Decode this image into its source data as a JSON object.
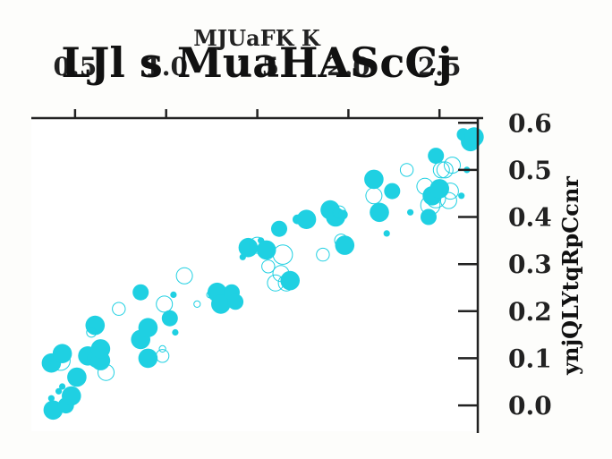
{
  "chart_data": {
    "type": "scatter",
    "subtitle": "MJUaFK K",
    "title": "LJl s MuaHAScCj",
    "ylabel": "ynjQLYtqRpCcnr",
    "xlabel": "",
    "x_axis_position": "top",
    "y_axis_position": "right",
    "xlim": [
      0.26,
      2.71
    ],
    "ylim": [
      -0.055,
      0.61
    ],
    "xticks": [
      0.5,
      1.0,
      1.5,
      2.0,
      2.5
    ],
    "xtick_labels": [
      "0.5",
      "1.0",
      "1.5",
      "2.0",
      "2.5"
    ],
    "yticks": [
      0.0,
      0.1,
      0.2,
      0.3,
      0.4,
      0.5,
      0.6
    ],
    "ytick_labels": [
      "0.0",
      "0.1",
      "0.2",
      "0.3",
      "0.4",
      "0.5",
      "0.6"
    ],
    "grid": false,
    "marker_color": "#1fd0e2",
    "points": [
      {
        "x": 0.38,
        "y": -0.01,
        "size": 3,
        "filled": true
      },
      {
        "x": 0.45,
        "y": 0.0,
        "size": 2.5,
        "filled": true
      },
      {
        "x": 0.48,
        "y": 0.02,
        "size": 3,
        "filled": true
      },
      {
        "x": 0.37,
        "y": 0.015,
        "size": 1,
        "filled": true
      },
      {
        "x": 0.41,
        "y": 0.03,
        "size": 1,
        "filled": true
      },
      {
        "x": 0.43,
        "y": 0.04,
        "size": 1,
        "filled": true
      },
      {
        "x": 0.37,
        "y": 0.09,
        "size": 3,
        "filled": true
      },
      {
        "x": 0.42,
        "y": 0.095,
        "size": 3,
        "filled": false
      },
      {
        "x": 0.43,
        "y": 0.11,
        "size": 3,
        "filled": true
      },
      {
        "x": 0.51,
        "y": 0.06,
        "size": 3,
        "filled": true
      },
      {
        "x": 0.57,
        "y": 0.105,
        "size": 3,
        "filled": true
      },
      {
        "x": 0.62,
        "y": 0.1,
        "size": 3,
        "filled": true
      },
      {
        "x": 0.64,
        "y": 0.095,
        "size": 3,
        "filled": true
      },
      {
        "x": 0.64,
        "y": 0.12,
        "size": 3,
        "filled": true
      },
      {
        "x": 0.67,
        "y": 0.07,
        "size": 2.5,
        "filled": false
      },
      {
        "x": 0.61,
        "y": 0.17,
        "size": 3,
        "filled": true
      },
      {
        "x": 0.59,
        "y": 0.155,
        "size": 1.5,
        "filled": false
      },
      {
        "x": 0.74,
        "y": 0.205,
        "size": 2,
        "filled": false
      },
      {
        "x": 0.86,
        "y": 0.24,
        "size": 2.5,
        "filled": true
      },
      {
        "x": 0.86,
        "y": 0.14,
        "size": 3,
        "filled": true
      },
      {
        "x": 0.9,
        "y": 0.165,
        "size": 3,
        "filled": true
      },
      {
        "x": 0.9,
        "y": 0.1,
        "size": 3,
        "filled": true
      },
      {
        "x": 0.88,
        "y": 0.09,
        "size": 1,
        "filled": true
      },
      {
        "x": 0.98,
        "y": 0.105,
        "size": 2,
        "filled": false
      },
      {
        "x": 0.98,
        "y": 0.12,
        "size": 1,
        "filled": false
      },
      {
        "x": 0.99,
        "y": 0.215,
        "size": 2.5,
        "filled": false
      },
      {
        "x": 1.02,
        "y": 0.185,
        "size": 2.5,
        "filled": true
      },
      {
        "x": 1.04,
        "y": 0.235,
        "size": 1,
        "filled": true
      },
      {
        "x": 1.05,
        "y": 0.155,
        "size": 1,
        "filled": true
      },
      {
        "x": 1.1,
        "y": 0.275,
        "size": 2.5,
        "filled": false
      },
      {
        "x": 1.17,
        "y": 0.215,
        "size": 1,
        "filled": false
      },
      {
        "x": 1.24,
        "y": 0.235,
        "size": 1,
        "filled": false
      },
      {
        "x": 1.28,
        "y": 0.24,
        "size": 3,
        "filled": true
      },
      {
        "x": 1.3,
        "y": 0.215,
        "size": 3,
        "filled": true
      },
      {
        "x": 1.36,
        "y": 0.24,
        "size": 2.5,
        "filled": true
      },
      {
        "x": 1.38,
        "y": 0.22,
        "size": 2.5,
        "filled": true
      },
      {
        "x": 1.42,
        "y": 0.315,
        "size": 1,
        "filled": true
      },
      {
        "x": 1.45,
        "y": 0.335,
        "size": 3,
        "filled": true
      },
      {
        "x": 1.5,
        "y": 0.34,
        "size": 2.5,
        "filled": false
      },
      {
        "x": 1.52,
        "y": 0.35,
        "size": 1,
        "filled": true
      },
      {
        "x": 1.55,
        "y": 0.33,
        "size": 3,
        "filled": true
      },
      {
        "x": 1.56,
        "y": 0.295,
        "size": 2,
        "filled": false
      },
      {
        "x": 1.6,
        "y": 0.26,
        "size": 2.5,
        "filled": false
      },
      {
        "x": 1.62,
        "y": 0.375,
        "size": 2.5,
        "filled": true
      },
      {
        "x": 1.63,
        "y": 0.28,
        "size": 2.5,
        "filled": false
      },
      {
        "x": 1.64,
        "y": 0.32,
        "size": 3,
        "filled": false
      },
      {
        "x": 1.66,
        "y": 0.26,
        "size": 2.5,
        "filled": false
      },
      {
        "x": 1.68,
        "y": 0.265,
        "size": 3,
        "filled": true
      },
      {
        "x": 1.72,
        "y": 0.395,
        "size": 1.5,
        "filled": true
      },
      {
        "x": 1.77,
        "y": 0.395,
        "size": 3,
        "filled": true
      },
      {
        "x": 1.86,
        "y": 0.32,
        "size": 2,
        "filled": false
      },
      {
        "x": 1.9,
        "y": 0.415,
        "size": 3,
        "filled": true
      },
      {
        "x": 1.93,
        "y": 0.4,
        "size": 3,
        "filled": true
      },
      {
        "x": 1.95,
        "y": 0.41,
        "size": 2,
        "filled": false
      },
      {
        "x": 1.97,
        "y": 0.405,
        "size": 1.5,
        "filled": true
      },
      {
        "x": 1.96,
        "y": 0.35,
        "size": 2,
        "filled": false
      },
      {
        "x": 1.98,
        "y": 0.34,
        "size": 3,
        "filled": true
      },
      {
        "x": 2.14,
        "y": 0.48,
        "size": 3,
        "filled": true
      },
      {
        "x": 2.14,
        "y": 0.445,
        "size": 2.5,
        "filled": false
      },
      {
        "x": 2.17,
        "y": 0.41,
        "size": 3,
        "filled": true
      },
      {
        "x": 2.21,
        "y": 0.365,
        "size": 1,
        "filled": true
      },
      {
        "x": 2.24,
        "y": 0.455,
        "size": 2.5,
        "filled": true
      },
      {
        "x": 2.32,
        "y": 0.5,
        "size": 2,
        "filled": false
      },
      {
        "x": 2.34,
        "y": 0.41,
        "size": 1,
        "filled": true
      },
      {
        "x": 2.42,
        "y": 0.465,
        "size": 2.5,
        "filled": false
      },
      {
        "x": 2.44,
        "y": 0.4,
        "size": 2.5,
        "filled": true
      },
      {
        "x": 2.45,
        "y": 0.425,
        "size": 3,
        "filled": false
      },
      {
        "x": 2.46,
        "y": 0.445,
        "size": 3,
        "filled": true
      },
      {
        "x": 2.48,
        "y": 0.44,
        "size": 3,
        "filled": false
      },
      {
        "x": 2.48,
        "y": 0.53,
        "size": 2.5,
        "filled": true
      },
      {
        "x": 2.5,
        "y": 0.46,
        "size": 3,
        "filled": true
      },
      {
        "x": 2.51,
        "y": 0.5,
        "size": 2.5,
        "filled": false
      },
      {
        "x": 2.53,
        "y": 0.5,
        "size": 2.5,
        "filled": false
      },
      {
        "x": 2.55,
        "y": 0.435,
        "size": 2.5,
        "filled": false
      },
      {
        "x": 2.56,
        "y": 0.455,
        "size": 2.5,
        "filled": false
      },
      {
        "x": 2.57,
        "y": 0.51,
        "size": 2.5,
        "filled": false
      },
      {
        "x": 2.62,
        "y": 0.445,
        "size": 1,
        "filled": true
      },
      {
        "x": 2.63,
        "y": 0.575,
        "size": 2,
        "filled": true
      },
      {
        "x": 2.65,
        "y": 0.5,
        "size": 1,
        "filled": true
      },
      {
        "x": 2.67,
        "y": 0.56,
        "size": 3,
        "filled": true
      },
      {
        "x": 2.69,
        "y": 0.57,
        "size": 3,
        "filled": true
      }
    ]
  }
}
